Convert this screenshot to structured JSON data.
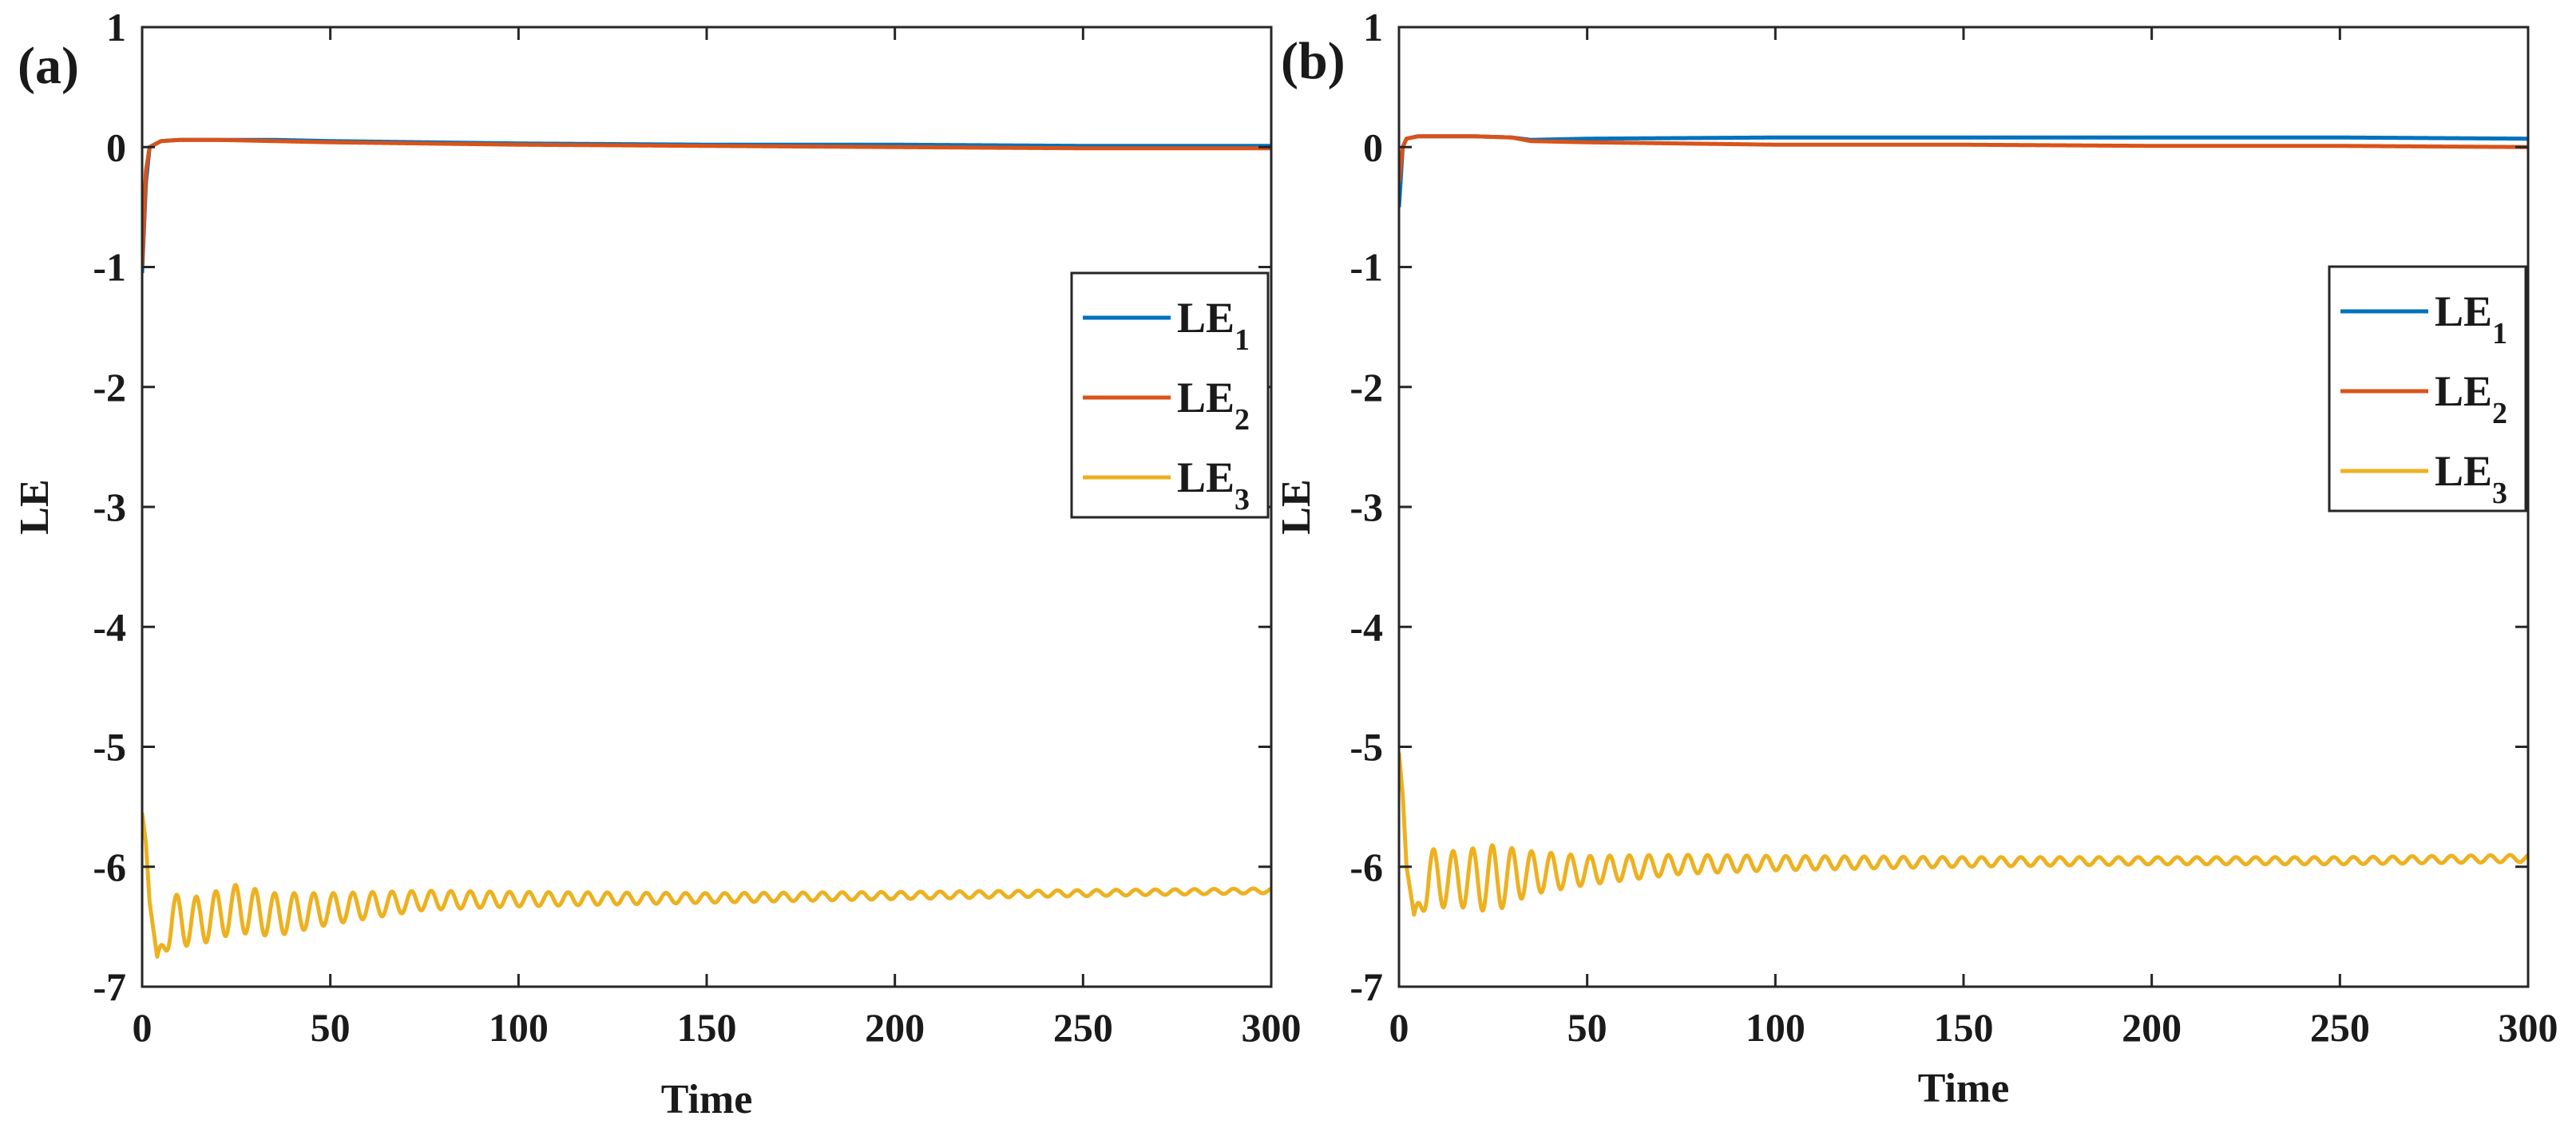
{
  "chart_data": [
    {
      "type": "line",
      "panel_label": "(a)",
      "xlabel": "Time",
      "ylabel": "LE",
      "xlim": [
        0,
        300
      ],
      "ylim": [
        -7,
        1
      ],
      "xticks": [
        "0",
        "50",
        "100",
        "150",
        "200",
        "250",
        "300"
      ],
      "yticks": [
        "1",
        "0",
        "-1",
        "-2",
        "-3",
        "-4",
        "-5",
        "-6",
        "-7"
      ],
      "legend_position": "right",
      "series": [
        {
          "name": "LE",
          "subscript": "1",
          "color": "#0072BD",
          "x": [
            0,
            1,
            2,
            5,
            10,
            20,
            35,
            50,
            75,
            100,
            150,
            200,
            250,
            300
          ],
          "y": [
            -1.05,
            -0.3,
            0.0,
            0.05,
            0.06,
            0.06,
            0.06,
            0.05,
            0.04,
            0.03,
            0.02,
            0.02,
            0.01,
            0.01
          ]
        },
        {
          "name": "LE",
          "subscript": "2",
          "color": "#D95319",
          "x": [
            0,
            1,
            2,
            5,
            10,
            20,
            35,
            50,
            75,
            100,
            150,
            200,
            250,
            300
          ],
          "y": [
            -1.0,
            -0.2,
            0.0,
            0.05,
            0.06,
            0.06,
            0.05,
            0.04,
            0.03,
            0.02,
            0.01,
            0.0,
            -0.01,
            -0.01
          ]
        },
        {
          "name": "LE",
          "subscript": "3",
          "color": "#EDB120",
          "x": [
            0,
            1,
            2,
            4,
            8,
            15,
            25,
            35,
            50,
            75,
            100,
            150,
            200,
            250,
            300
          ],
          "y": [
            -5.55,
            -5.8,
            -6.3,
            -6.75,
            -6.45,
            -6.45,
            -6.35,
            -6.4,
            -6.35,
            -6.28,
            -6.27,
            -6.26,
            -6.24,
            -6.22,
            -6.2
          ],
          "oscillation": [
            0.0,
            0.0,
            0.0,
            0.0,
            0.22,
            0.2,
            0.2,
            0.18,
            0.13,
            0.08,
            0.06,
            0.04,
            0.03,
            0.025,
            0.02
          ],
          "period": 5.2
        }
      ]
    },
    {
      "type": "line",
      "panel_label": "(b)",
      "xlabel": "Time",
      "ylabel": "LE",
      "xlim": [
        0,
        300
      ],
      "ylim": [
        -7,
        1
      ],
      "xticks": [
        "0",
        "50",
        "100",
        "150",
        "200",
        "250",
        "300"
      ],
      "yticks": [
        "1",
        "0",
        "-1",
        "-2",
        "-3",
        "-4",
        "-5",
        "-6",
        "-7"
      ],
      "legend_position": "right",
      "series": [
        {
          "name": "LE",
          "subscript": "1",
          "color": "#0072BD",
          "x": [
            0,
            1,
            2,
            5,
            10,
            20,
            30,
            35,
            50,
            100,
            150,
            200,
            250,
            300
          ],
          "y": [
            -0.5,
            0.0,
            0.07,
            0.09,
            0.09,
            0.09,
            0.08,
            0.06,
            0.07,
            0.08,
            0.08,
            0.08,
            0.08,
            0.07
          ]
        },
        {
          "name": "LE",
          "subscript": "2",
          "color": "#D95319",
          "x": [
            0,
            1,
            2,
            5,
            10,
            20,
            30,
            35,
            50,
            100,
            150,
            200,
            250,
            300
          ],
          "y": [
            -0.3,
            0.0,
            0.07,
            0.09,
            0.09,
            0.09,
            0.08,
            0.05,
            0.04,
            0.02,
            0.02,
            0.01,
            0.01,
            0.0
          ]
        },
        {
          "name": "LE",
          "subscript": "3",
          "color": "#EDB120",
          "x": [
            0,
            1,
            2,
            4,
            8,
            15,
            25,
            35,
            50,
            75,
            100,
            150,
            200,
            250,
            300
          ],
          "y": [
            -5.05,
            -5.4,
            -6.0,
            -6.4,
            -6.1,
            -6.1,
            -6.1,
            -6.05,
            -6.03,
            -5.98,
            -5.97,
            -5.96,
            -5.95,
            -5.95,
            -5.93
          ],
          "oscillation": [
            0.0,
            0.0,
            0.0,
            0.0,
            0.25,
            0.23,
            0.28,
            0.18,
            0.12,
            0.08,
            0.06,
            0.04,
            0.03,
            0.03,
            0.03
          ],
          "period": 5.2
        }
      ]
    }
  ]
}
